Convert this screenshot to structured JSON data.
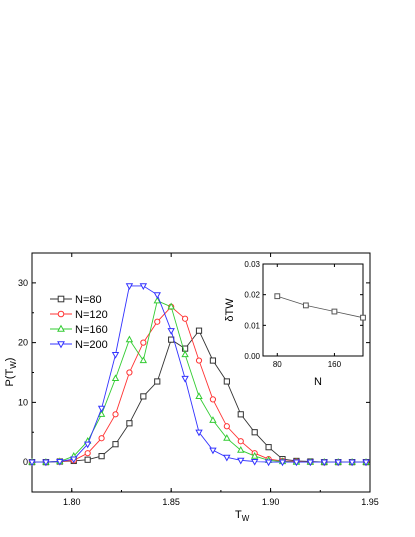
{
  "chart_data": [
    {
      "type": "line",
      "title": "",
      "xlabel": "T",
      "xlabel_sub": "W",
      "ylabel": "P(T",
      "ylabel_sub": "W",
      "ylabel_close": ")",
      "xlim": [
        1.78,
        1.95
      ],
      "ylim": [
        -5,
        35
      ],
      "xticks": [
        1.8,
        1.85,
        1.9,
        1.95
      ],
      "xtick_labels": [
        "1.80",
        "1.85",
        "1.90",
        "1.95"
      ],
      "yticks": [
        0,
        10,
        20,
        30
      ],
      "ytick_labels": [
        "0",
        "10",
        "20",
        "30"
      ],
      "legend_position": "upper-left",
      "series": [
        {
          "name": "N=80",
          "color": "#333333",
          "marker": "square",
          "x": [
            1.78,
            1.787,
            1.794,
            1.801,
            1.808,
            1.815,
            1.822,
            1.829,
            1.836,
            1.843,
            1.85,
            1.857,
            1.864,
            1.871,
            1.878,
            1.885,
            1.892,
            1.899,
            1.906,
            1.913,
            1.92,
            1.927,
            1.934,
            1.941,
            1.948
          ],
          "y": [
            0,
            0,
            0.1,
            0.2,
            0.4,
            1,
            3,
            6.5,
            11,
            13.5,
            20.5,
            19,
            22,
            17,
            13.5,
            8,
            5,
            2.5,
            0.5,
            0.2,
            0.1,
            0,
            0,
            0,
            0
          ]
        },
        {
          "name": "N=120",
          "color": "#ff3333",
          "marker": "circle",
          "x": [
            1.78,
            1.787,
            1.794,
            1.801,
            1.808,
            1.815,
            1.822,
            1.829,
            1.836,
            1.843,
            1.85,
            1.857,
            1.864,
            1.871,
            1.878,
            1.885,
            1.892,
            1.899,
            1.906,
            1.913,
            1.92,
            1.927,
            1.934,
            1.941,
            1.948
          ],
          "y": [
            0,
            0,
            0.1,
            0.3,
            1.5,
            4,
            8,
            15,
            20,
            23.5,
            26,
            24,
            17,
            10.5,
            6,
            3.5,
            1.5,
            0.5,
            0.2,
            0.1,
            0,
            0,
            0,
            0,
            0
          ]
        },
        {
          "name": "N=160",
          "color": "#33cc33",
          "marker": "triangle-up",
          "x": [
            1.78,
            1.787,
            1.794,
            1.801,
            1.808,
            1.815,
            1.822,
            1.829,
            1.836,
            1.843,
            1.85,
            1.857,
            1.864,
            1.871,
            1.878,
            1.885,
            1.892,
            1.899,
            1.906,
            1.913,
            1.92,
            1.927,
            1.934,
            1.941,
            1.948
          ],
          "y": [
            0,
            0,
            0.1,
            1,
            3.5,
            8,
            14,
            20.5,
            17,
            27,
            26,
            18,
            11,
            7,
            4,
            2,
            1,
            0.3,
            0.1,
            0,
            0,
            0,
            0,
            0,
            0
          ]
        },
        {
          "name": "N=200",
          "color": "#3333ff",
          "marker": "triangle-down",
          "x": [
            1.78,
            1.787,
            1.794,
            1.801,
            1.808,
            1.815,
            1.822,
            1.829,
            1.836,
            1.843,
            1.85,
            1.857,
            1.864,
            1.871,
            1.878,
            1.885,
            1.892,
            1.899,
            1.906,
            1.913,
            1.92,
            1.927,
            1.934,
            1.941,
            1.948
          ],
          "y": [
            0,
            0,
            0.1,
            0.5,
            3,
            9,
            18,
            29.5,
            29.5,
            28,
            22,
            14,
            5,
            2,
            0.8,
            0.3,
            0.1,
            0,
            0,
            0,
            0,
            0,
            0,
            0,
            0
          ]
        }
      ]
    },
    {
      "type": "line",
      "title": "",
      "xlabel": "N",
      "ylabel": "δTW",
      "xlim": [
        60,
        200
      ],
      "ylim": [
        0,
        0.03
      ],
      "xticks": [
        80,
        160
      ],
      "xtick_labels": [
        "80",
        "160"
      ],
      "yticks": [
        0,
        0.01,
        0.02,
        0.03
      ],
      "ytick_labels": [
        "0.00",
        "0.01",
        "0.02",
        "0.03"
      ],
      "series": [
        {
          "color": "#555555",
          "marker": "square",
          "x": [
            80,
            120,
            160,
            200
          ],
          "y": [
            0.0195,
            0.0165,
            0.0145,
            0.0125
          ]
        }
      ]
    }
  ]
}
